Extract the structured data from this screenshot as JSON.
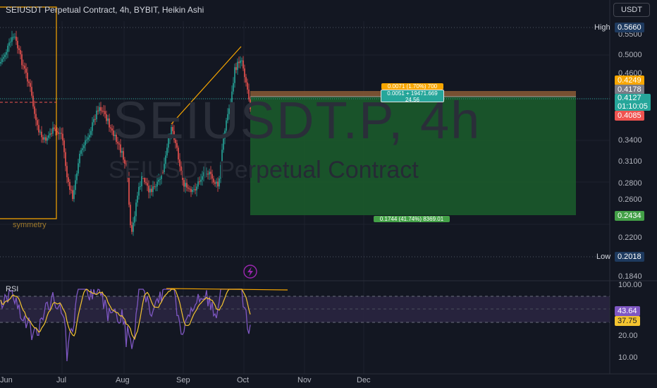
{
  "header": {
    "title": "SEIUSDT Perpetual Contract, 4h, BYBIT, Heikin Ashi",
    "currency": "USDT"
  },
  "watermark": {
    "symbol": "SEIUSDT.P, 4h",
    "description": "SEIUSDT Perpetual Contract"
  },
  "price_axis": {
    "ticks": [
      "0.5500",
      "0.5000",
      "0.4600",
      "0.3400",
      "0.3100",
      "0.2800",
      "0.2600",
      "0.2200",
      "0.1840"
    ],
    "high_label": "High",
    "high_value": "0.5660",
    "low_label": "Low",
    "low_value": "0.2018",
    "target_price": "0.4249",
    "ref_price": "0.4178",
    "current_price": "0.4127",
    "countdown": "01:10:05",
    "stop_price": "0.4085",
    "profit_target": "0.2434"
  },
  "position": {
    "stop_label": "0.0071 (1.70%) 700",
    "entry_label_line1": "0.0051 + 19471.669",
    "entry_label_line2": "24.56",
    "target_label": "0.1744 (41.74%) 8369.01"
  },
  "drawing": {
    "symmetry_label": "symmetry"
  },
  "rsi": {
    "label": "RSI",
    "ticks": [
      "100.00",
      "20.00",
      "10.00"
    ],
    "value_1": "43.64",
    "value_2": "37.75"
  },
  "time_axis": {
    "labels": [
      "Jun",
      "Jul",
      "Aug",
      "Sep",
      "Oct",
      "Nov",
      "Dec"
    ]
  },
  "colors": {
    "background": "#131722",
    "up": "#26a69a",
    "down": "#ef5350",
    "drawing": "#f7a600",
    "rsi_line": "#7e57c2",
    "rsi_ma": "#f4c430",
    "profit_zone": "#1e5d2e",
    "loss_zone": "#7d5b3a"
  },
  "icons": {
    "lightning": "lightning-icon"
  }
}
